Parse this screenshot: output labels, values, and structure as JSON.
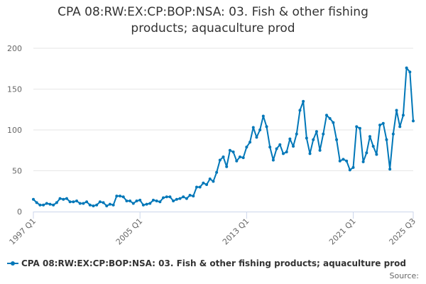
{
  "colors": {
    "series": "#0077b8",
    "grid": "#e6e6e6",
    "axis": "#ccd6eb",
    "text": "#666666"
  },
  "chart_data": {
    "type": "line",
    "title_lines": [
      "CPA 08:RW:EX:CP:BOP:NSA: 03. Fish & other fishing",
      "products; aquaculture prod"
    ],
    "source_label": "Source:",
    "ylim": [
      0,
      200
    ],
    "yticks": [
      "0",
      "50",
      "100",
      "150",
      "200"
    ],
    "xticks": [
      "1997 Q1",
      "2005 Q1",
      "2013 Q1",
      "2021 Q1",
      "2025 Q3"
    ],
    "grid": true,
    "legend_position": "bottom",
    "series": [
      {
        "name": "CPA 08:RW:EX:CP:BOP:NSA: 03. Fish & other fishing products; aquaculture prod",
        "x": [
          "1997 Q1",
          "1997 Q2",
          "1997 Q3",
          "1997 Q4",
          "1998 Q1",
          "1998 Q2",
          "1998 Q3",
          "1998 Q4",
          "1999 Q1",
          "1999 Q2",
          "1999 Q3",
          "1999 Q4",
          "2000 Q1",
          "2000 Q2",
          "2000 Q3",
          "2000 Q4",
          "2001 Q1",
          "2001 Q2",
          "2001 Q3",
          "2001 Q4",
          "2002 Q1",
          "2002 Q2",
          "2002 Q3",
          "2002 Q4",
          "2003 Q1",
          "2003 Q2",
          "2003 Q3",
          "2003 Q4",
          "2004 Q1",
          "2004 Q2",
          "2004 Q3",
          "2004 Q4",
          "2005 Q1",
          "2005 Q2",
          "2005 Q3",
          "2005 Q4",
          "2006 Q1",
          "2006 Q2",
          "2006 Q3",
          "2006 Q4",
          "2007 Q1",
          "2007 Q2",
          "2007 Q3",
          "2007 Q4",
          "2008 Q1",
          "2008 Q2",
          "2008 Q3",
          "2008 Q4",
          "2009 Q1",
          "2009 Q2",
          "2009 Q3",
          "2009 Q4",
          "2010 Q1",
          "2010 Q2",
          "2010 Q3",
          "2010 Q4",
          "2011 Q1",
          "2011 Q2",
          "2011 Q3",
          "2011 Q4",
          "2012 Q1",
          "2012 Q2",
          "2012 Q3",
          "2012 Q4",
          "2013 Q1",
          "2013 Q2",
          "2013 Q3",
          "2013 Q4",
          "2014 Q1",
          "2014 Q2",
          "2014 Q3",
          "2014 Q4",
          "2015 Q1",
          "2015 Q2",
          "2015 Q3",
          "2015 Q4",
          "2016 Q1",
          "2016 Q2",
          "2016 Q3",
          "2016 Q4",
          "2017 Q1",
          "2017 Q2",
          "2017 Q3",
          "2017 Q4",
          "2018 Q1",
          "2018 Q2",
          "2018 Q3",
          "2018 Q4",
          "2019 Q1",
          "2019 Q2",
          "2019 Q3",
          "2019 Q4",
          "2020 Q1",
          "2020 Q2",
          "2020 Q3",
          "2020 Q4",
          "2021 Q1",
          "2021 Q2",
          "2021 Q3",
          "2021 Q4",
          "2022 Q1",
          "2022 Q2",
          "2022 Q3",
          "2022 Q4",
          "2023 Q1",
          "2023 Q2",
          "2023 Q3",
          "2023 Q4",
          "2024 Q1",
          "2024 Q2",
          "2024 Q3",
          "2024 Q4",
          "2025 Q1",
          "2025 Q2",
          "2025 Q3"
        ],
        "values": [
          15,
          11,
          8,
          8,
          10,
          9,
          8,
          11,
          16,
          15,
          16,
          12,
          12,
          13,
          10,
          10,
          12,
          8,
          7,
          8,
          12,
          11,
          7,
          9,
          8,
          19,
          19,
          18,
          13,
          13,
          10,
          13,
          14,
          8,
          9,
          10,
          14,
          13,
          12,
          17,
          18,
          18,
          13,
          15,
          16,
          18,
          16,
          20,
          19,
          30,
          30,
          35,
          33,
          40,
          37,
          48,
          63,
          67,
          55,
          75,
          73,
          62,
          67,
          66,
          79,
          85,
          103,
          91,
          100,
          117,
          104,
          79,
          63,
          77,
          82,
          71,
          73,
          89,
          80,
          95,
          124,
          135,
          90,
          71,
          88,
          98,
          75,
          95,
          118,
          114,
          109,
          88,
          62,
          64,
          62,
          51,
          54,
          104,
          102,
          61,
          72,
          92,
          80,
          70,
          106,
          108,
          88,
          52,
          95,
          124,
          104,
          118,
          176,
          171,
          111
        ]
      }
    ]
  }
}
